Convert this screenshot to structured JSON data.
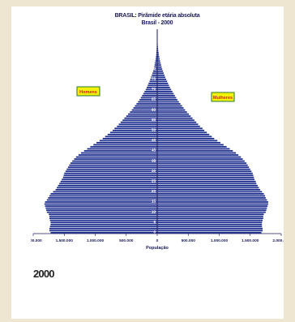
{
  "caption": "2000",
  "colors": {
    "bar": "#1f2f8f",
    "axis": "#1a1a5a",
    "background": "#ffffff",
    "label_bg": "#f2f20a",
    "label_border": "#2a7a2a",
    "label_text": "#d02020"
  },
  "chart_data": {
    "type": "bar",
    "orientation": "horizontal-population-pyramid",
    "title": "BRASIL: Pirâmide etária absoluta",
    "subtitle": "Brasil - 2000",
    "xlabel": "População",
    "x_tick_labels": [
      "2.000.000",
      "1.500.000",
      "1.000.000",
      "500.000",
      "0",
      "500.000",
      "1.000.000",
      "1.500.000",
      "2.000.000"
    ],
    "xlim": [
      -2000000,
      2000000
    ],
    "y_tick_labels": [
      "0",
      "5",
      "10",
      "15",
      "20",
      "25",
      "30",
      "35",
      "40",
      "45",
      "50",
      "55",
      "60",
      "65",
      "70",
      "75",
      "80",
      "85",
      "90",
      "95"
    ],
    "ylabel": "",
    "series": [
      {
        "name": "Homens",
        "values": [
          1720000,
          1740000,
          1740000,
          1730000,
          1720000,
          1720000,
          1730000,
          1740000,
          1740000,
          1750000,
          1780000,
          1790000,
          1800000,
          1810000,
          1820000,
          1810000,
          1780000,
          1760000,
          1740000,
          1720000,
          1680000,
          1640000,
          1620000,
          1600000,
          1580000,
          1560000,
          1540000,
          1520000,
          1510000,
          1500000,
          1480000,
          1460000,
          1440000,
          1420000,
          1400000,
          1370000,
          1340000,
          1310000,
          1270000,
          1230000,
          1180000,
          1130000,
          1080000,
          1030000,
          980000,
          930000,
          880000,
          840000,
          800000,
          760000,
          720000,
          690000,
          650000,
          620000,
          590000,
          560000,
          530000,
          500000,
          470000,
          440000,
          410000,
          385000,
          360000,
          335000,
          310000,
          285000,
          265000,
          245000,
          225000,
          205000,
          185000,
          170000,
          155000,
          140000,
          125000,
          112000,
          100000,
          88000,
          77000,
          67000,
          58000,
          50000,
          43000,
          37000,
          31000,
          26000,
          21000,
          17000,
          14000,
          11000,
          9000,
          7000,
          5500,
          4000,
          3000,
          2200,
          1600,
          1100,
          800,
          500
        ]
      },
      {
        "name": "Mulheres",
        "values": [
          1680000,
          1700000,
          1700000,
          1690000,
          1690000,
          1690000,
          1700000,
          1710000,
          1710000,
          1720000,
          1750000,
          1760000,
          1770000,
          1780000,
          1790000,
          1790000,
          1770000,
          1750000,
          1740000,
          1720000,
          1690000,
          1660000,
          1640000,
          1620000,
          1600000,
          1590000,
          1570000,
          1560000,
          1550000,
          1540000,
          1520000,
          1500000,
          1480000,
          1460000,
          1440000,
          1410000,
          1380000,
          1350000,
          1310000,
          1270000,
          1220000,
          1170000,
          1120000,
          1070000,
          1020000,
          970000,
          920000,
          880000,
          840000,
          800000,
          760000,
          730000,
          690000,
          660000,
          630000,
          600000,
          570000,
          540000,
          510000,
          480000,
          450000,
          425000,
          400000,
          375000,
          350000,
          325000,
          305000,
          285000,
          265000,
          245000,
          225000,
          205000,
          190000,
          175000,
          160000,
          145000,
          130000,
          117000,
          104000,
          92000,
          81000,
          71000,
          62000,
          54000,
          46000,
          39000,
          33000,
          27000,
          22000,
          18000,
          14000,
          11000,
          8500,
          6500,
          5000,
          3800,
          2800,
          2000,
          1400,
          900
        ]
      }
    ],
    "annotations": [
      "Homens",
      "Mulheres"
    ],
    "grid": false,
    "legend": "none"
  }
}
